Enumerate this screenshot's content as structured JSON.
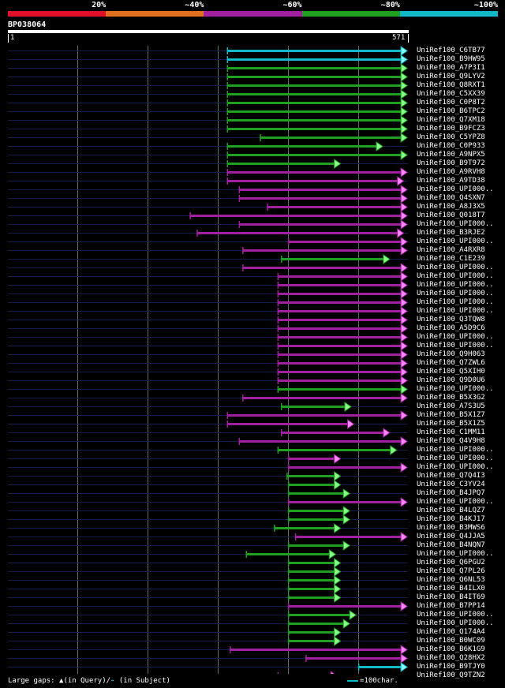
{
  "legend": {
    "segments": [
      {
        "label": "20%",
        "color": "#e0102a"
      },
      {
        "label": "~40%",
        "color": "#e07020"
      },
      {
        "label": "~60%",
        "color": "#a020a0"
      },
      {
        "label": "~80%",
        "color": "#20a020"
      },
      {
        "label": "~100%",
        "color": "#10b8c8"
      }
    ]
  },
  "query": {
    "id": "BP038064",
    "start": "1",
    "end": "571",
    "length": 571
  },
  "colors": {
    "cyan": "#10b8c8",
    "green": "#20a020",
    "magenta": "#a020a0",
    "arrow_pink": "#ff88ff",
    "arrow_green": "#88ff88",
    "arrow_cyan": "#88ffff",
    "baseline": "#141e4a",
    "grid": "#6a6a6a"
  },
  "hits": [
    {
      "name": "UniRef100_C6TB77",
      "start": 313,
      "end": 570,
      "color": "cyan"
    },
    {
      "name": "UniRef100_B9HW95",
      "start": 313,
      "end": 570,
      "color": "cyan"
    },
    {
      "name": "UniRef100_A7P3I1",
      "start": 313,
      "end": 570,
      "color": "green"
    },
    {
      "name": "UniRef100_Q9LYV2",
      "start": 313,
      "end": 570,
      "color": "green"
    },
    {
      "name": "UniRef100_Q8RXT1",
      "start": 313,
      "end": 570,
      "color": "green"
    },
    {
      "name": "UniRef100_C5XX39",
      "start": 313,
      "end": 570,
      "color": "green"
    },
    {
      "name": "UniRef100_C0P8T2",
      "start": 313,
      "end": 570,
      "color": "green"
    },
    {
      "name": "UniRef100_B6TPC2",
      "start": 313,
      "end": 570,
      "color": "green"
    },
    {
      "name": "UniRef100_Q7XM18",
      "start": 313,
      "end": 570,
      "color": "green"
    },
    {
      "name": "UniRef100_B9FCZ3",
      "start": 313,
      "end": 570,
      "color": "green"
    },
    {
      "name": "UniRef100_C5YPZ8",
      "start": 360,
      "end": 570,
      "color": "green"
    },
    {
      "name": "UniRef100_C0P933",
      "start": 313,
      "end": 535,
      "color": "green"
    },
    {
      "name": "UniRef100_A9NPX5",
      "start": 313,
      "end": 570,
      "color": "green"
    },
    {
      "name": "UniRef100_B9T972",
      "start": 313,
      "end": 475,
      "color": "green"
    },
    {
      "name": "UniRef100_A9RVH8",
      "start": 313,
      "end": 570,
      "color": "magenta"
    },
    {
      "name": "UniRef100_A9TD38",
      "start": 313,
      "end": 565,
      "color": "magenta"
    },
    {
      "name": "UniRef100_UPI000..",
      "start": 330,
      "end": 570,
      "color": "magenta"
    },
    {
      "name": "UniRef100_Q4SXN7",
      "start": 330,
      "end": 570,
      "color": "magenta"
    },
    {
      "name": "UniRef100_A8J3X5",
      "start": 370,
      "end": 570,
      "color": "magenta"
    },
    {
      "name": "UniRef100_Q018T7",
      "start": 260,
      "end": 570,
      "color": "magenta"
    },
    {
      "name": "UniRef100_UPI000..",
      "start": 330,
      "end": 570,
      "color": "magenta"
    },
    {
      "name": "UniRef100_B3RJE2",
      "start": 270,
      "end": 565,
      "color": "magenta"
    },
    {
      "name": "UniRef100_UPI000..",
      "start": 400,
      "end": 570,
      "color": "magenta"
    },
    {
      "name": "UniRef100_A4RXR8",
      "start": 335,
      "end": 570,
      "color": "magenta"
    },
    {
      "name": "UniRef100_C1E239",
      "start": 390,
      "end": 545,
      "color": "green"
    },
    {
      "name": "UniRef100_UPI000..",
      "start": 335,
      "end": 570,
      "color": "magenta"
    },
    {
      "name": "UniRef100_UPI000..",
      "start": 385,
      "end": 570,
      "color": "magenta"
    },
    {
      "name": "UniRef100_UPI000..",
      "start": 385,
      "end": 570,
      "color": "magenta"
    },
    {
      "name": "UniRef100_UPI000..",
      "start": 385,
      "end": 570,
      "color": "magenta"
    },
    {
      "name": "UniRef100_UPI000..",
      "start": 385,
      "end": 570,
      "color": "magenta"
    },
    {
      "name": "UniRef100_UPI000..",
      "start": 385,
      "end": 570,
      "color": "magenta"
    },
    {
      "name": "UniRef100_Q3TQW8",
      "start": 385,
      "end": 570,
      "color": "magenta"
    },
    {
      "name": "UniRef100_A5D9C6",
      "start": 385,
      "end": 570,
      "color": "magenta"
    },
    {
      "name": "UniRef100_UPI000..",
      "start": 385,
      "end": 570,
      "color": "magenta"
    },
    {
      "name": "UniRef100_UPI000..",
      "start": 385,
      "end": 570,
      "color": "magenta"
    },
    {
      "name": "UniRef100_Q9H063",
      "start": 385,
      "end": 570,
      "color": "magenta"
    },
    {
      "name": "UniRef100_Q7ZWL6",
      "start": 385,
      "end": 570,
      "color": "magenta"
    },
    {
      "name": "UniRef100_Q5XIH0",
      "start": 385,
      "end": 570,
      "color": "magenta"
    },
    {
      "name": "UniRef100_Q9D0U6",
      "start": 385,
      "end": 570,
      "color": "magenta"
    },
    {
      "name": "UniRef100_UPI000..",
      "start": 385,
      "end": 570,
      "color": "green"
    },
    {
      "name": "UniRef100_B5X3G2",
      "start": 335,
      "end": 570,
      "color": "magenta"
    },
    {
      "name": "UniRef100_A7S3U5",
      "start": 390,
      "end": 490,
      "color": "green"
    },
    {
      "name": "UniRef100_B5X1Z7",
      "start": 313,
      "end": 570,
      "color": "magenta"
    },
    {
      "name": "UniRef100_B5X1Z5",
      "start": 313,
      "end": 494,
      "color": "magenta"
    },
    {
      "name": "UniRef100_C1MM11",
      "start": 390,
      "end": 545,
      "color": "magenta"
    },
    {
      "name": "UniRef100_Q4V9H8",
      "start": 330,
      "end": 570,
      "color": "magenta"
    },
    {
      "name": "UniRef100_UPI000..",
      "start": 385,
      "end": 555,
      "color": "green"
    },
    {
      "name": "UniRef100_UPI000..",
      "start": 400,
      "end": 475,
      "color": "magenta"
    },
    {
      "name": "UniRef100_UPI000..",
      "start": 400,
      "end": 570,
      "color": "magenta"
    },
    {
      "name": "UniRef100_Q7Q4I3",
      "start": 398,
      "end": 475,
      "color": "green"
    },
    {
      "name": "UniRef100_C3YV24",
      "start": 400,
      "end": 475,
      "color": "green"
    },
    {
      "name": "UniRef100_B4JPQ7",
      "start": 400,
      "end": 488,
      "color": "green"
    },
    {
      "name": "UniRef100_UPI000..",
      "start": 400,
      "end": 570,
      "color": "magenta"
    },
    {
      "name": "UniRef100_B4LQZ7",
      "start": 400,
      "end": 488,
      "color": "green"
    },
    {
      "name": "UniRef100_B4KJ17",
      "start": 400,
      "end": 488,
      "color": "green"
    },
    {
      "name": "UniRef100_B3MWS6",
      "start": 380,
      "end": 475,
      "color": "green"
    },
    {
      "name": "UniRef100_Q4JJA5",
      "start": 410,
      "end": 570,
      "color": "magenta"
    },
    {
      "name": "UniRef100_B4NQN7",
      "start": 400,
      "end": 488,
      "color": "green"
    },
    {
      "name": "UniRef100_UPI000..",
      "start": 340,
      "end": 468,
      "color": "green"
    },
    {
      "name": "UniRef100_Q6PGU2",
      "start": 400,
      "end": 475,
      "color": "green"
    },
    {
      "name": "UniRef100_Q7PL26",
      "start": 400,
      "end": 475,
      "color": "green"
    },
    {
      "name": "UniRef100_Q6NL53",
      "start": 400,
      "end": 475,
      "color": "green"
    },
    {
      "name": "UniRef100_B4ILX0",
      "start": 400,
      "end": 475,
      "color": "green"
    },
    {
      "name": "UniRef100_B4IT69",
      "start": 400,
      "end": 475,
      "color": "green"
    },
    {
      "name": "UniRef100_B7PP14",
      "start": 400,
      "end": 570,
      "color": "magenta"
    },
    {
      "name": "UniRef100_UPI000..",
      "start": 400,
      "end": 497,
      "color": "green"
    },
    {
      "name": "UniRef100_UPI000..",
      "start": 400,
      "end": 488,
      "color": "green"
    },
    {
      "name": "UniRef100_Q174A4",
      "start": 400,
      "end": 475,
      "color": "green"
    },
    {
      "name": "UniRef100_B0WC09",
      "start": 400,
      "end": 475,
      "color": "green"
    },
    {
      "name": "UniRef100_B6K1G9",
      "start": 317,
      "end": 570,
      "color": "magenta"
    },
    {
      "name": "UniRef100_Q28HX2",
      "start": 425,
      "end": 570,
      "color": "magenta"
    },
    {
      "name": "UniRef100_B9TJY0",
      "start": 500,
      "end": 570,
      "color": "cyan"
    },
    {
      "name": "UniRef100_Q9TZN2",
      "start": 385,
      "end": 470,
      "color": "magenta"
    }
  ],
  "footer": {
    "text": "Large gaps: ▲(in Query)/",
    "dash": "-",
    "suffix": " (in Subject)",
    "scale_label": "=100char."
  }
}
